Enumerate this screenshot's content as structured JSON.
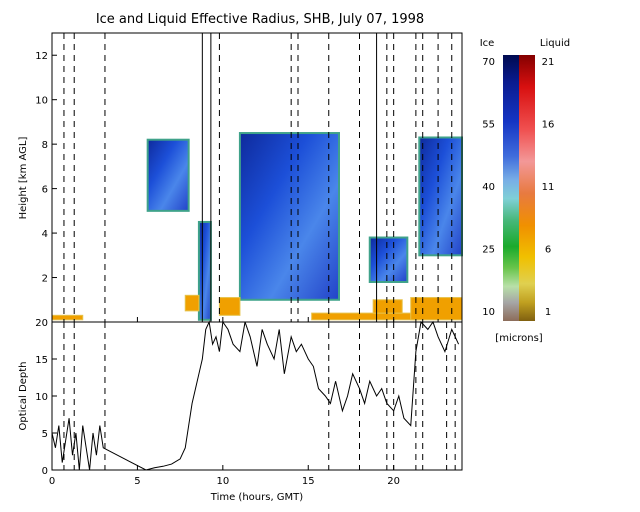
{
  "chart_data": [
    {
      "type": "heatmap",
      "title": "Ice and Liquid Effective Radius, SHB, July 07, 1998",
      "xlabel": "",
      "ylabel": "Height [km AGL]",
      "xlim": [
        0,
        24
      ],
      "ylim": [
        0,
        13
      ],
      "x_ticks": [
        0,
        5,
        10,
        15,
        20
      ],
      "y_ticks": [
        2,
        4,
        6,
        8,
        10,
        12
      ],
      "colorbars": [
        {
          "name": "Ice",
          "range": [
            10,
            70
          ],
          "ticks": [
            70,
            55,
            40,
            25,
            10
          ]
        },
        {
          "name": "Liquid",
          "range": [
            1,
            21
          ],
          "ticks": [
            21,
            16,
            11,
            6,
            1
          ]
        }
      ],
      "colorbar_units": "[microns]",
      "ice_cloud_regions": [
        {
          "x": [
            5.6,
            8.0
          ],
          "ybase": 5.0,
          "ytop": 8.2
        },
        {
          "x": [
            8.6,
            9.3
          ],
          "ybase": 0.1,
          "ytop": 4.5
        },
        {
          "x": [
            11.0,
            16.8
          ],
          "ybase": 1.0,
          "ytop": 8.5
        },
        {
          "x": [
            18.6,
            20.8
          ],
          "ybase": 1.8,
          "ytop": 3.8
        },
        {
          "x": [
            21.5,
            24.0
          ],
          "ybase": 3.0,
          "ytop": 8.3
        }
      ],
      "liquid_cloud_regions": [
        {
          "x": [
            0.0,
            1.8
          ],
          "ybase": 0.1,
          "ytop": 0.3
        },
        {
          "x": [
            7.8,
            8.6
          ],
          "ybase": 0.5,
          "ytop": 1.2
        },
        {
          "x": [
            9.8,
            11.0
          ],
          "ybase": 0.3,
          "ytop": 1.1
        },
        {
          "x": [
            15.2,
            21.5
          ],
          "ybase": 0.1,
          "ytop": 0.4
        },
        {
          "x": [
            18.8,
            20.5
          ],
          "ybase": 0.4,
          "ytop": 1.0
        },
        {
          "x": [
            21.0,
            24.0
          ],
          "ybase": 0.1,
          "ytop": 1.1
        }
      ],
      "dashed_vlines": [
        0.7,
        1.3,
        3.1,
        9.8,
        14.0,
        14.4,
        16.2,
        18.0,
        19.6,
        20.0,
        21.3,
        21.7,
        22.6,
        23.4
      ],
      "solid_vlines": [
        8.8,
        9.3,
        19.0
      ]
    },
    {
      "type": "line",
      "xlabel": "Time (hours, GMT)",
      "ylabel": "Optical Depth",
      "xlim": [
        0,
        24
      ],
      "ylim": [
        0,
        20
      ],
      "x_ticks": [
        0,
        5,
        10,
        15,
        20
      ],
      "y_ticks": [
        0,
        5,
        10,
        15,
        20
      ],
      "series": [
        {
          "x": [
            0.0,
            0.2,
            0.4,
            0.6,
            0.8,
            1.0,
            1.2,
            1.4,
            1.6,
            1.8,
            2.0,
            2.2,
            2.4,
            2.6,
            2.8,
            3.0,
            5.5,
            6.0,
            6.5,
            7.0,
            7.5,
            7.8,
            8.0,
            8.2,
            8.4,
            8.6,
            8.8,
            9.0,
            9.2,
            9.4,
            9.6,
            9.8,
            10.0,
            10.3,
            10.6,
            11.0,
            11.3,
            11.6,
            12.0,
            12.3,
            12.6,
            13.0,
            13.3,
            13.6,
            14.0,
            14.3,
            14.6,
            15.0,
            15.3,
            15.6,
            16.0,
            16.3,
            16.6,
            17.0,
            17.3,
            17.6,
            18.0,
            18.3,
            18.6,
            19.0,
            19.3,
            19.6,
            20.0,
            20.3,
            20.6,
            21.0,
            21.3,
            21.6,
            22.0,
            22.3,
            22.6,
            23.0,
            23.4,
            23.8
          ],
          "values": [
            5,
            3,
            6,
            1,
            4,
            7,
            2,
            5,
            0,
            6,
            3,
            0,
            5,
            2,
            6,
            3,
            0,
            0.3,
            0.5,
            0.8,
            1.5,
            3,
            6,
            9,
            11,
            13,
            15,
            19,
            20,
            17,
            18,
            16,
            20,
            19,
            17,
            16,
            20,
            18,
            14,
            19,
            17,
            15,
            19,
            13,
            18,
            16,
            17,
            15,
            14,
            11,
            10,
            9,
            12,
            8,
            10,
            13,
            11,
            9,
            12,
            10,
            11,
            9,
            8,
            10,
            7,
            6,
            16,
            20,
            19,
            20,
            18,
            16,
            19,
            17
          ]
        }
      ],
      "dashed_vlines": [
        0.7,
        1.3,
        3.1,
        16.2,
        18.0,
        19.6,
        20.0,
        21.3,
        21.7,
        23.1,
        23.6
      ]
    }
  ]
}
